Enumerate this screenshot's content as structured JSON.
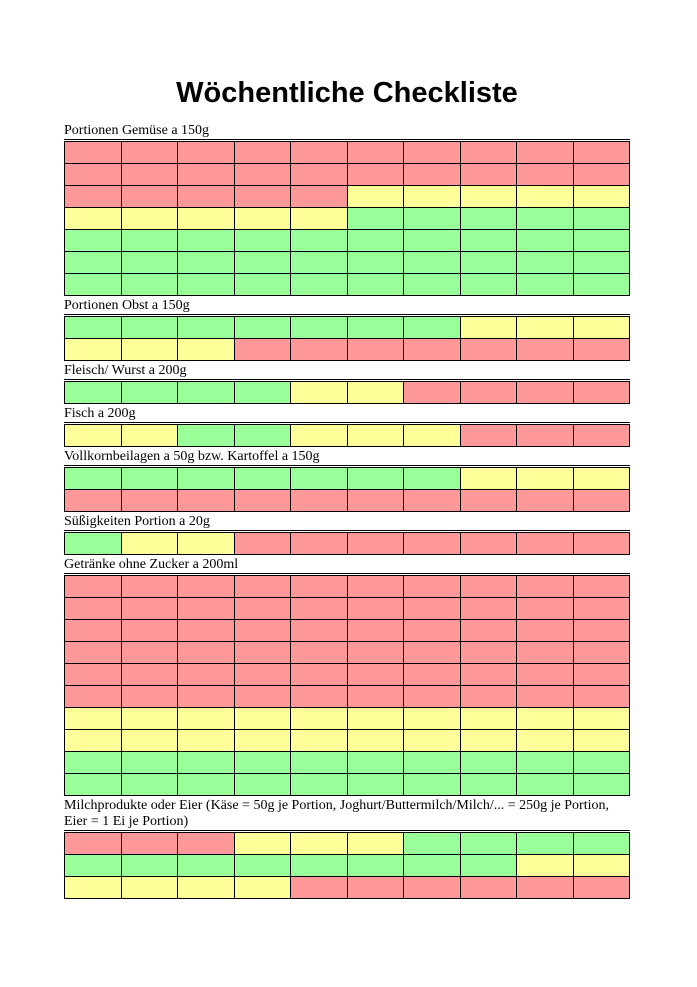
{
  "page": {
    "title": "Wöchentliche Checkliste"
  },
  "colors": {
    "red": "#FF9999",
    "yellow": "#FFFF99",
    "green": "#99FF99",
    "border": "#000000",
    "background": "#FFFFFF"
  },
  "legend": {
    "r": "red",
    "y": "yellow",
    "g": "green"
  },
  "columns": 10,
  "sections": [
    {
      "label": "Portionen Gemüse a 150g",
      "rows": [
        "rrrrrrrrrr",
        "rrrrrrrrrr",
        "rrrrryyyyy",
        "yyyyyggggg",
        "gggggggggg",
        "gggggggggg",
        "gggggggggg"
      ]
    },
    {
      "label": "Portionen Obst a 150g",
      "rows": [
        "gggggggyyy",
        "yyyrrrrrrr"
      ]
    },
    {
      "label": "Fleisch/ Wurst a 200g",
      "rows": [
        "ggggyyrrrr"
      ]
    },
    {
      "label": "Fisch a 200g",
      "rows": [
        "yyggyyyrrr"
      ]
    },
    {
      "label": "Vollkornbeilagen a 50g bzw. Kartoffel a 150g",
      "rows": [
        "gggggggyyy",
        "rrrrrrrrrr"
      ]
    },
    {
      "label": "Süßigkeiten Portion a 20g",
      "rows": [
        "gyyrrrrrrr"
      ]
    },
    {
      "label": "Getränke ohne Zucker a 200ml",
      "rows": [
        "rrrrrrrrrr",
        "rrrrrrrrrr",
        "rrrrrrrrrr",
        "rrrrrrrrrr",
        "rrrrrrrrrr",
        "rrrrrrrrrr",
        "yyyyyyyyyy",
        "yyyyyyyyyy",
        "gggggggggg",
        "gggggggggg"
      ]
    },
    {
      "label": "Milchprodukte oder Eier (Käse = 50g je Portion, Joghurt/Buttermilch/Milch/... = 250g je Portion, Eier = 1 Ei je Portion)",
      "rows": [
        "rrryyygggg",
        "ggggggggyy",
        "yyyyrrrrrr"
      ]
    }
  ]
}
